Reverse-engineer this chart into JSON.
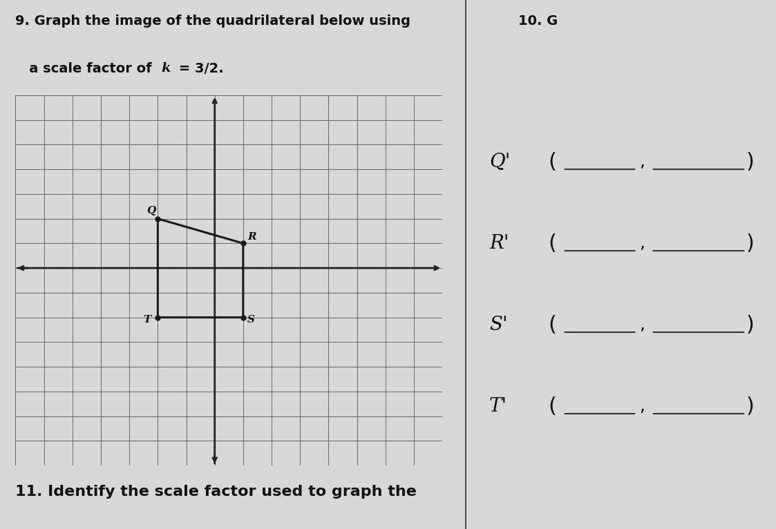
{
  "title_text": "9. Graph the image of the quadrilateral below using\n   a scale factor of ",
  "title_k": "k = 3/2.",
  "bg_color": "#d8d8d8",
  "paper_color": "#f0eff0",
  "grid_color": "#555555",
  "axis_color": "#222222",
  "quad_color": "#1a1a1a",
  "quad_points": [
    [
      -2,
      2
    ],
    [
      1,
      1
    ],
    [
      1,
      -2
    ],
    [
      -2,
      -2
    ]
  ],
  "point_labels": [
    "Q",
    "R",
    "S",
    "T"
  ],
  "x_range": [
    -7,
    8
  ],
  "y_range": [
    -8,
    7
  ],
  "answer_labels": [
    "Q'",
    "R'",
    "S'",
    "T'"
  ],
  "right_section_text": "10. G",
  "bottom_text": "11. Identify the scale factor used to graph the"
}
